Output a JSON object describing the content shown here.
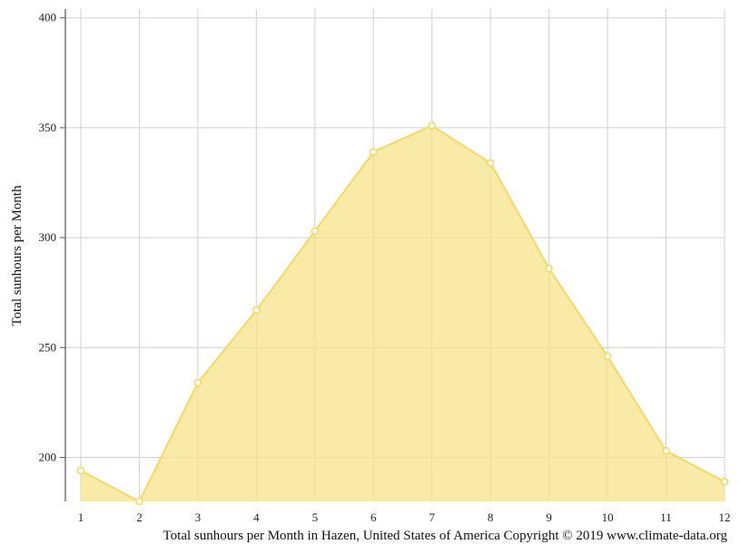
{
  "chart_data": {
    "type": "area",
    "categories": [
      "1",
      "2",
      "3",
      "4",
      "5",
      "6",
      "7",
      "8",
      "9",
      "10",
      "11",
      "12"
    ],
    "series": [
      {
        "values": [
          194,
          180,
          234,
          267,
          303,
          339,
          351,
          334,
          286,
          246,
          203,
          189
        ]
      }
    ],
    "ylabel": "Total sunhours per Month",
    "caption": "Total sunhours per Month in Hazen, United States of America Copyright © 2019 www.climate-data.org",
    "yticks": [
      200,
      250,
      300,
      350,
      400
    ],
    "ylim": [
      180,
      404
    ],
    "grid": true,
    "colors": {
      "fill": "#f7e38a",
      "line": "#f5d95c",
      "marker_fill": "#ffffff",
      "grid": "#d0d0d0",
      "axis": "#555555"
    }
  }
}
